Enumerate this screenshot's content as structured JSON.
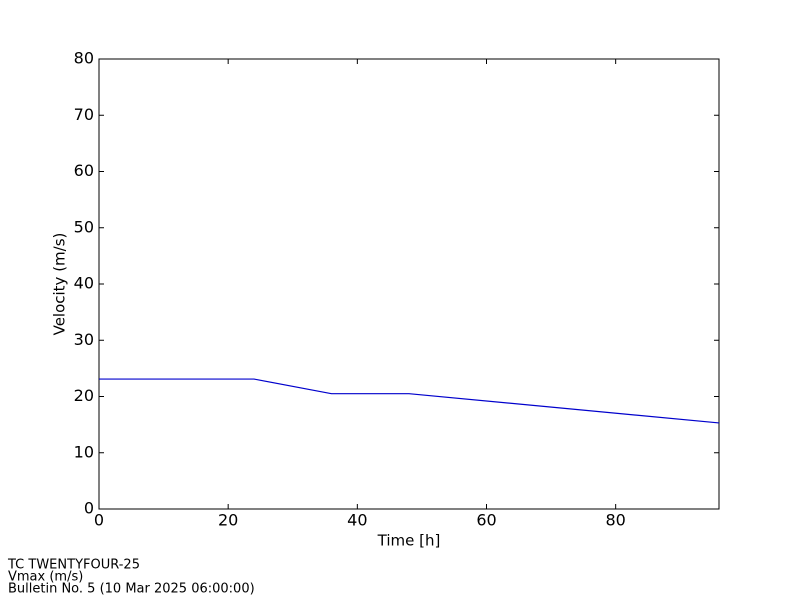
{
  "chart_data": {
    "type": "line",
    "xlabel": "Time [h]",
    "ylabel": "Velocity (m/s)",
    "x": [
      0,
      24,
      36,
      48,
      96
    ],
    "series": [
      {
        "name": "Vmax",
        "color": "#0000cc",
        "values": [
          23.1,
          23.1,
          20.5,
          20.5,
          15.3
        ]
      }
    ],
    "xlim": [
      0,
      96
    ],
    "xticks": [
      0,
      20,
      40,
      60,
      80
    ],
    "ylim": [
      0,
      80
    ],
    "yticks": [
      0,
      10,
      20,
      30,
      40,
      50,
      60,
      70,
      80
    ],
    "annotations": [
      "TC TWENTYFOUR-25",
      "Vmax (m/s)",
      "Bulletin No. 5 (10 Mar 2025  06:00:00)"
    ]
  }
}
